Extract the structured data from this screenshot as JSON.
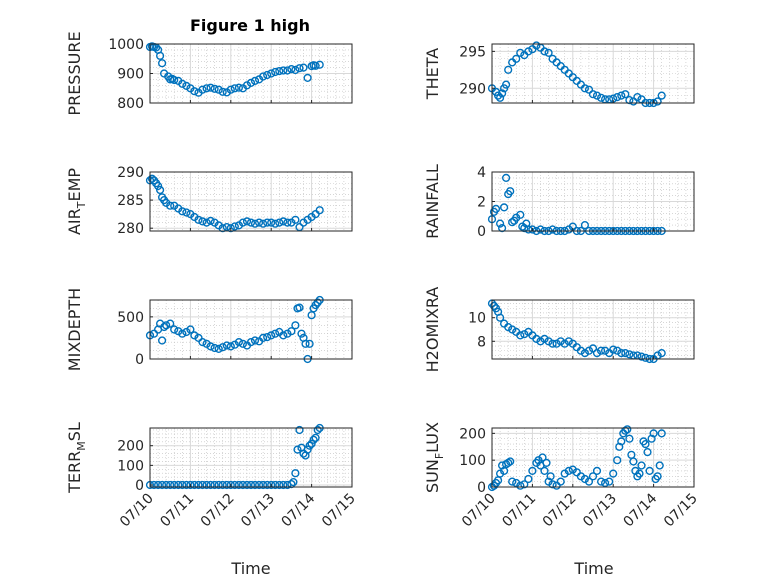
{
  "figure": {
    "title": "Figure 1 high"
  },
  "colors": {
    "marker": "#0072BD",
    "axes": "#262626",
    "grid": "#d9d9d9",
    "grid_minor": "#bfbfbf"
  },
  "chart_data": [
    {
      "type": "scatter",
      "title": "Figure 1 high",
      "ylabel": "PRESSURE",
      "ylim": [
        800,
        1000
      ],
      "yticks": [
        800,
        900,
        1000
      ],
      "ytick_labels": [
        "800",
        "900",
        "1000"
      ],
      "xlim": [
        0,
        5
      ],
      "grid": true,
      "minor_grid": true,
      "x": [
        0.0,
        0.05,
        0.1,
        0.15,
        0.2,
        0.25,
        0.3,
        0.35,
        0.45,
        0.5,
        0.55,
        0.6,
        0.7,
        0.8,
        0.9,
        1.0,
        1.1,
        1.2,
        1.3,
        1.4,
        1.5,
        1.6,
        1.7,
        1.8,
        1.9,
        2.0,
        2.1,
        2.2,
        2.3,
        2.4,
        2.5,
        2.6,
        2.7,
        2.8,
        2.9,
        3.0,
        3.1,
        3.2,
        3.3,
        3.4,
        3.5,
        3.6,
        3.7,
        3.8,
        3.9,
        4.0,
        4.05,
        4.1,
        4.2
      ],
      "y": [
        990,
        992,
        990,
        988,
        980,
        960,
        935,
        900,
        890,
        880,
        882,
        878,
        875,
        865,
        858,
        850,
        840,
        835,
        845,
        850,
        852,
        848,
        845,
        838,
        836,
        845,
        850,
        852,
        850,
        860,
        868,
        875,
        880,
        890,
        895,
        900,
        905,
        908,
        910,
        910,
        915,
        912,
        918,
        920,
        885,
        925,
        928,
        926,
        930
      ]
    },
    {
      "type": "scatter",
      "ylabel": "THETA",
      "ylim": [
        288,
        296
      ],
      "yticks": [
        290,
        295
      ],
      "ytick_labels": [
        "290",
        "295"
      ],
      "xlim": [
        0,
        5
      ],
      "grid": true,
      "minor_grid": true,
      "x": [
        0.0,
        0.1,
        0.15,
        0.2,
        0.25,
        0.3,
        0.35,
        0.4,
        0.5,
        0.6,
        0.7,
        0.8,
        0.9,
        1.0,
        1.1,
        1.2,
        1.3,
        1.4,
        1.5,
        1.6,
        1.7,
        1.8,
        1.9,
        2.0,
        2.1,
        2.2,
        2.3,
        2.4,
        2.5,
        2.6,
        2.7,
        2.8,
        2.9,
        3.0,
        3.1,
        3.2,
        3.3,
        3.4,
        3.5,
        3.6,
        3.7,
        3.8,
        3.9,
        4.0,
        4.1,
        4.2
      ],
      "y": [
        290.0,
        289.5,
        289.0,
        288.7,
        289.3,
        290.0,
        290.5,
        292.5,
        293.5,
        294.0,
        294.8,
        294.5,
        295.0,
        295.3,
        295.8,
        295.5,
        295.0,
        294.8,
        294.0,
        293.5,
        293.0,
        292.5,
        292.0,
        291.5,
        291.0,
        290.5,
        290.0,
        289.8,
        289.2,
        289.0,
        288.7,
        288.5,
        288.5,
        288.6,
        288.8,
        289.0,
        289.2,
        288.4,
        288.2,
        288.8,
        288.5,
        288.0,
        288.0,
        288.0,
        288.2,
        289.0
      ]
    },
    {
      "type": "scatter",
      "ylabel": "AIR_TEMP",
      "ylabel_main": "AIR",
      "ylabel_sub": "T",
      "ylabel_rest": "EMP",
      "ylim": [
        279.5,
        290
      ],
      "yticks": [
        280,
        285,
        290
      ],
      "ytick_labels": [
        "280",
        "285",
        "290"
      ],
      "xlim": [
        0,
        5
      ],
      "grid": true,
      "minor_grid": true,
      "x": [
        0.0,
        0.05,
        0.1,
        0.15,
        0.2,
        0.25,
        0.3,
        0.35,
        0.4,
        0.5,
        0.6,
        0.7,
        0.8,
        0.9,
        1.0,
        1.1,
        1.2,
        1.3,
        1.4,
        1.5,
        1.6,
        1.7,
        1.8,
        1.9,
        2.0,
        2.1,
        2.2,
        2.3,
        2.4,
        2.5,
        2.6,
        2.7,
        2.8,
        2.9,
        3.0,
        3.1,
        3.2,
        3.3,
        3.4,
        3.5,
        3.6,
        3.7,
        3.8,
        3.9,
        4.0,
        4.1,
        4.2
      ],
      "y": [
        288.5,
        288.8,
        288.5,
        288.0,
        287.5,
        286.8,
        285.5,
        285.0,
        284.5,
        284.0,
        284.0,
        283.5,
        283.0,
        282.8,
        282.5,
        282.0,
        281.5,
        281.2,
        281.0,
        281.3,
        281.0,
        280.5,
        280.0,
        280.2,
        280.0,
        280.3,
        280.5,
        281.0,
        281.2,
        281.0,
        280.8,
        281.0,
        280.8,
        281.0,
        281.0,
        280.8,
        281.0,
        281.2,
        281.0,
        281.0,
        281.5,
        280.2,
        281.0,
        281.5,
        282.0,
        282.5,
        283.2
      ]
    },
    {
      "type": "scatter",
      "ylabel": "RAINFALL",
      "ylim": [
        0,
        4
      ],
      "yticks": [
        0,
        2,
        4
      ],
      "ytick_labels": [
        "0",
        "2",
        "4"
      ],
      "xlim": [
        0,
        5
      ],
      "grid": true,
      "minor_grid": true,
      "x": [
        0.0,
        0.05,
        0.1,
        0.2,
        0.25,
        0.3,
        0.35,
        0.4,
        0.45,
        0.5,
        0.55,
        0.6,
        0.7,
        0.75,
        0.8,
        0.85,
        0.9,
        1.0,
        1.1,
        1.2,
        1.3,
        1.4,
        1.5,
        1.6,
        1.7,
        1.8,
        1.9,
        2.0,
        2.1,
        2.2,
        2.3,
        2.4,
        2.5,
        2.6,
        2.7,
        2.8,
        2.9,
        3.0,
        3.1,
        3.2,
        3.3,
        3.4,
        3.5,
        3.6,
        3.7,
        3.8,
        3.9,
        4.0,
        4.1,
        4.2
      ],
      "y": [
        0.8,
        1.3,
        1.5,
        0.5,
        0.2,
        1.6,
        3.6,
        2.5,
        2.7,
        0.6,
        0.7,
        0.9,
        1.1,
        0.3,
        0.2,
        0.5,
        0.1,
        0.1,
        0.0,
        0.1,
        0.0,
        0.0,
        0.1,
        0.0,
        0.0,
        0.0,
        0.1,
        0.3,
        0.0,
        0.0,
        0.4,
        0.0,
        0.0,
        0.0,
        0.0,
        0.0,
        0.0,
        0.0,
        0.0,
        0.0,
        0.0,
        0.0,
        0.0,
        0.0,
        0.0,
        0.0,
        0.0,
        0.0,
        0.0,
        0.0
      ]
    },
    {
      "type": "scatter",
      "ylabel": "MIXDEPTH",
      "ylim": [
        0,
        700
      ],
      "yticks": [
        0,
        500
      ],
      "ytick_labels": [
        "0",
        "500"
      ],
      "xlim": [
        0,
        5
      ],
      "grid": true,
      "minor_grid": true,
      "x": [
        0.0,
        0.1,
        0.2,
        0.25,
        0.3,
        0.35,
        0.4,
        0.5,
        0.6,
        0.7,
        0.8,
        0.9,
        1.0,
        1.1,
        1.2,
        1.3,
        1.4,
        1.5,
        1.6,
        1.7,
        1.8,
        1.9,
        2.0,
        2.1,
        2.2,
        2.3,
        2.4,
        2.5,
        2.6,
        2.7,
        2.8,
        2.9,
        3.0,
        3.1,
        3.2,
        3.3,
        3.4,
        3.5,
        3.6,
        3.65,
        3.7,
        3.75,
        3.8,
        3.85,
        3.9,
        3.95,
        4.0,
        4.05,
        4.1,
        4.15,
        4.2
      ],
      "y": [
        280,
        300,
        350,
        420,
        220,
        380,
        400,
        420,
        350,
        330,
        300,
        320,
        350,
        280,
        250,
        200,
        180,
        150,
        130,
        120,
        140,
        160,
        150,
        170,
        200,
        180,
        160,
        200,
        220,
        210,
        250,
        260,
        280,
        300,
        320,
        280,
        300,
        330,
        400,
        600,
        610,
        300,
        250,
        180,
        0,
        180,
        520,
        600,
        640,
        670,
        700
      ]
    },
    {
      "type": "scatter",
      "ylabel": "H2OMIXRA",
      "ylim": [
        6.5,
        11.5
      ],
      "yticks": [
        8,
        10
      ],
      "ytick_labels": [
        "8",
        "10"
      ],
      "xlim": [
        0,
        5
      ],
      "grid": true,
      "minor_grid": true,
      "x": [
        0.0,
        0.05,
        0.1,
        0.15,
        0.2,
        0.3,
        0.4,
        0.5,
        0.6,
        0.7,
        0.8,
        0.9,
        1.0,
        1.1,
        1.2,
        1.3,
        1.4,
        1.5,
        1.6,
        1.7,
        1.8,
        1.9,
        2.0,
        2.1,
        2.2,
        2.3,
        2.4,
        2.5,
        2.6,
        2.7,
        2.8,
        2.9,
        3.0,
        3.1,
        3.2,
        3.3,
        3.4,
        3.5,
        3.6,
        3.7,
        3.8,
        3.9,
        4.0,
        4.1,
        4.2
      ],
      "y": [
        11.2,
        11.0,
        10.8,
        10.5,
        10.0,
        9.5,
        9.2,
        9.0,
        8.8,
        8.5,
        8.6,
        8.8,
        8.5,
        8.2,
        8.0,
        8.2,
        8.0,
        7.8,
        7.8,
        8.0,
        7.8,
        8.0,
        7.8,
        7.5,
        7.2,
        7.0,
        7.2,
        7.4,
        7.0,
        7.2,
        7.2,
        7.0,
        7.3,
        7.2,
        7.0,
        7.0,
        6.9,
        6.8,
        6.8,
        6.7,
        6.6,
        6.5,
        6.5,
        6.8,
        7.0
      ]
    },
    {
      "type": "scatter",
      "ylabel": "TERR_MSL",
      "ylabel_main": "TERR",
      "ylabel_sub": "M",
      "ylabel_rest": "SL",
      "ylim": [
        -10,
        290
      ],
      "yticks": [
        0,
        100,
        200
      ],
      "ytick_labels": [
        "0",
        "100",
        "200"
      ],
      "xlim": [
        0,
        5
      ],
      "grid": true,
      "minor_grid": true,
      "x": [
        0.0,
        0.1,
        0.2,
        0.3,
        0.4,
        0.5,
        0.6,
        0.7,
        0.8,
        0.9,
        1.0,
        1.1,
        1.2,
        1.3,
        1.4,
        1.5,
        1.6,
        1.7,
        1.8,
        1.9,
        2.0,
        2.1,
        2.2,
        2.3,
        2.4,
        2.5,
        2.6,
        2.7,
        2.8,
        2.9,
        3.0,
        3.1,
        3.2,
        3.3,
        3.4,
        3.5,
        3.55,
        3.6,
        3.65,
        3.7,
        3.75,
        3.8,
        3.85,
        3.9,
        3.95,
        4.0,
        4.05,
        4.1,
        4.15,
        4.2
      ],
      "y": [
        0,
        0,
        0,
        0,
        0,
        0,
        0,
        0,
        0,
        0,
        0,
        0,
        0,
        0,
        0,
        0,
        0,
        0,
        0,
        0,
        0,
        0,
        0,
        0,
        0,
        0,
        0,
        0,
        0,
        0,
        0,
        0,
        0,
        0,
        0,
        5,
        15,
        60,
        180,
        280,
        190,
        160,
        150,
        180,
        200,
        210,
        230,
        240,
        280,
        290
      ]
    },
    {
      "type": "scatter",
      "ylabel": "SUN_FLUX",
      "ylabel_main": "SUN",
      "ylabel_sub": "F",
      "ylabel_rest": "LUX",
      "ylim": [
        0,
        220
      ],
      "yticks": [
        0,
        100,
        200
      ],
      "ytick_labels": [
        "0",
        "100",
        "200"
      ],
      "xlim": [
        0,
        5
      ],
      "grid": true,
      "minor_grid": true,
      "x": [
        0.0,
        0.05,
        0.1,
        0.15,
        0.2,
        0.25,
        0.3,
        0.35,
        0.4,
        0.45,
        0.5,
        0.6,
        0.7,
        0.8,
        0.9,
        1.0,
        1.1,
        1.15,
        1.2,
        1.25,
        1.3,
        1.35,
        1.4,
        1.45,
        1.5,
        1.6,
        1.7,
        1.8,
        1.9,
        2.0,
        2.1,
        2.2,
        2.3,
        2.4,
        2.5,
        2.6,
        2.7,
        2.8,
        2.9,
        3.0,
        3.1,
        3.15,
        3.2,
        3.25,
        3.3,
        3.35,
        3.4,
        3.45,
        3.5,
        3.55,
        3.6,
        3.65,
        3.7,
        3.75,
        3.8,
        3.85,
        3.9,
        3.95,
        4.0,
        4.05,
        4.1,
        4.15,
        4.2
      ],
      "y": [
        0,
        5,
        15,
        25,
        50,
        80,
        60,
        85,
        90,
        95,
        20,
        15,
        5,
        10,
        30,
        60,
        90,
        100,
        80,
        110,
        60,
        90,
        20,
        40,
        10,
        5,
        20,
        50,
        60,
        65,
        55,
        40,
        30,
        20,
        40,
        60,
        20,
        15,
        20,
        50,
        100,
        150,
        170,
        200,
        210,
        215,
        180,
        120,
        95,
        60,
        40,
        50,
        80,
        170,
        160,
        130,
        60,
        180,
        200,
        30,
        40,
        80,
        200
      ]
    }
  ],
  "x_axis": {
    "label": "Time",
    "ticks": [
      0,
      1,
      2,
      3,
      4,
      5
    ],
    "tick_labels": [
      "07/10",
      "07/11",
      "07/12",
      "07/13",
      "07/14",
      "07/15"
    ]
  }
}
